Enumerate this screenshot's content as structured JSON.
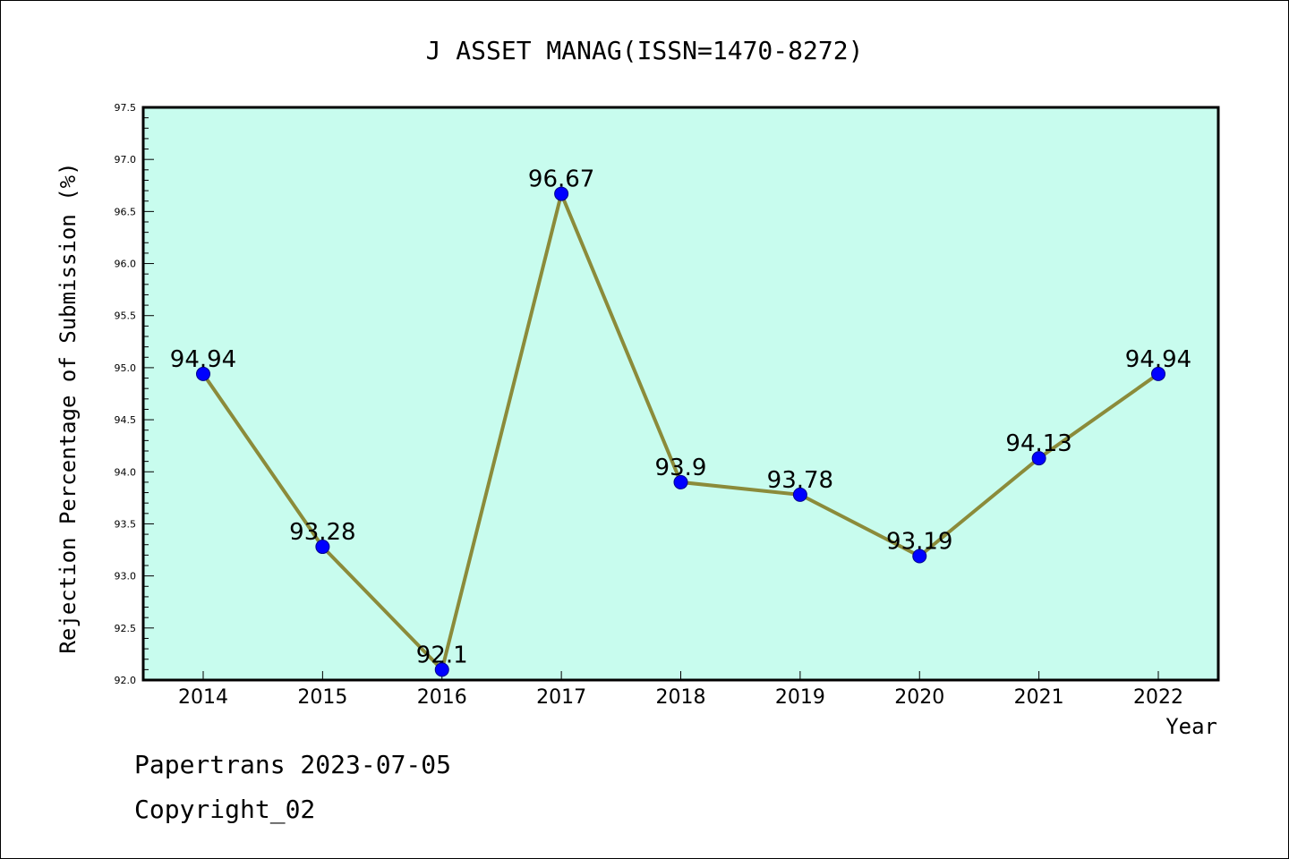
{
  "chart_data": {
    "type": "line",
    "title": "J ASSET MANAG(ISSN=1470-8272)",
    "xlabel": "Year",
    "ylabel": "Rejection Percentage of Submission (%)",
    "categories": [
      "2014",
      "2015",
      "2016",
      "2017",
      "2018",
      "2019",
      "2020",
      "2021",
      "2022"
    ],
    "values": [
      94.94,
      93.28,
      92.1,
      96.67,
      93.9,
      93.78,
      93.19,
      94.13,
      94.94
    ],
    "value_labels": [
      "94.94",
      "93.28",
      "92.1",
      "96.67",
      "93.9",
      "93.78",
      "93.19",
      "94.13",
      "94.94"
    ],
    "ylim": [
      92.0,
      97.5
    ],
    "yticks": [
      "92.0",
      "92.5",
      "93.0",
      "93.5",
      "94.0",
      "94.5",
      "95.0",
      "95.5",
      "96.0",
      "96.5",
      "97.0",
      "97.5"
    ],
    "grid": false,
    "colors": {
      "plot_background": "#c8fcee",
      "line": "#8b8b3a",
      "marker": "#0000ff"
    }
  },
  "footer": {
    "line1": "Papertrans 2023-07-05",
    "line2": "Copyright_02"
  }
}
